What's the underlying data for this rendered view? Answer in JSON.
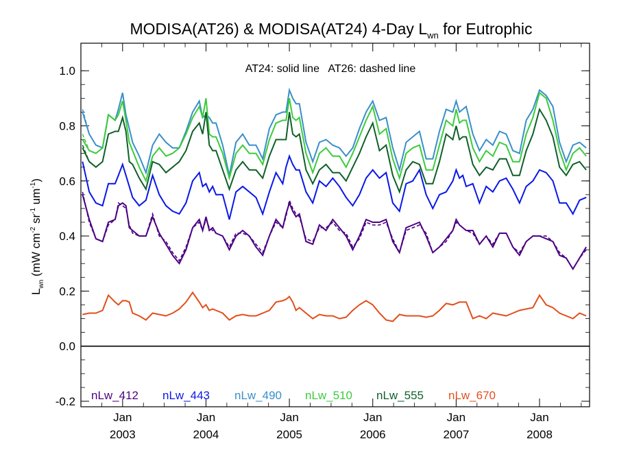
{
  "chart_data": {
    "type": "line",
    "title": {
      "main": "MODISA(AT26) & MODISA(AT24) 4-Day L",
      "sub": "wn",
      "suffix": " for Eutrophic"
    },
    "ylabel": {
      "main": "L",
      "sub": "wn",
      "paren": " (mW cm",
      "exp1": "-2",
      "mid1": " sr",
      "exp2": "-1",
      "mid2": " um",
      "exp3": "-1",
      "end": ")"
    },
    "annotation": "AT24: solid line   AT26: dashed line",
    "ylim": [
      -0.22,
      1.1
    ],
    "yticks": [
      "-0.2",
      "0.0",
      "0.2",
      "0.4",
      "0.6",
      "0.8",
      "1.0"
    ],
    "xlim": [
      2002.5,
      2008.6
    ],
    "xticks": [
      {
        "x": 2003.0,
        "month": "Jan",
        "year": "2003"
      },
      {
        "x": 2004.0,
        "month": "Jan",
        "year": "2004"
      },
      {
        "x": 2005.0,
        "month": "Jan",
        "year": "2005"
      },
      {
        "x": 2006.0,
        "month": "Jan",
        "year": "2006"
      },
      {
        "x": 2007.0,
        "month": "Jan",
        "year": "2007"
      },
      {
        "x": 2008.0,
        "month": "Jan",
        "year": "2008"
      }
    ],
    "zero_line": 0.0,
    "x": [
      2002.52,
      2002.6,
      2002.68,
      2002.76,
      2002.83,
      2002.91,
      2002.95,
      2003.0,
      2003.04,
      2003.08,
      2003.12,
      2003.2,
      2003.28,
      2003.36,
      2003.44,
      2003.52,
      2003.6,
      2003.68,
      2003.76,
      2003.84,
      2003.92,
      2003.96,
      2004.0,
      2004.04,
      2004.08,
      2004.12,
      2004.2,
      2004.28,
      2004.36,
      2004.44,
      2004.52,
      2004.6,
      2004.68,
      2004.76,
      2004.84,
      2004.92,
      2004.96,
      2005.0,
      2005.04,
      2005.08,
      2005.12,
      2005.2,
      2005.28,
      2005.36,
      2005.44,
      2005.52,
      2005.6,
      2005.68,
      2005.76,
      2005.84,
      2005.92,
      2006.0,
      2006.08,
      2006.16,
      2006.24,
      2006.32,
      2006.4,
      2006.48,
      2006.56,
      2006.64,
      2006.72,
      2006.8,
      2006.88,
      2006.96,
      2007.0,
      2007.04,
      2007.08,
      2007.12,
      2007.2,
      2007.28,
      2007.36,
      2007.44,
      2007.52,
      2007.6,
      2007.68,
      2007.76,
      2007.84,
      2007.92,
      2008.0,
      2008.08,
      2008.16,
      2008.24,
      2008.32,
      2008.4,
      2008.48,
      2008.56
    ],
    "series": [
      {
        "name": "nLw_412",
        "color": "#4B0082",
        "solid": [
          0.55,
          0.46,
          0.39,
          0.38,
          0.45,
          0.46,
          0.51,
          0.52,
          0.51,
          0.43,
          0.42,
          0.4,
          0.4,
          0.47,
          0.41,
          0.37,
          0.33,
          0.3,
          0.35,
          0.43,
          0.46,
          0.42,
          0.47,
          0.42,
          0.43,
          0.41,
          0.4,
          0.35,
          0.4,
          0.42,
          0.4,
          0.36,
          0.33,
          0.4,
          0.46,
          0.43,
          0.48,
          0.52,
          0.49,
          0.47,
          0.48,
          0.38,
          0.37,
          0.44,
          0.42,
          0.46,
          0.43,
          0.4,
          0.35,
          0.4,
          0.46,
          0.45,
          0.45,
          0.46,
          0.38,
          0.34,
          0.43,
          0.44,
          0.45,
          0.4,
          0.34,
          0.36,
          0.39,
          0.42,
          0.46,
          0.44,
          0.43,
          0.42,
          0.42,
          0.37,
          0.4,
          0.36,
          0.41,
          0.41,
          0.36,
          0.33,
          0.38,
          0.4,
          0.4,
          0.39,
          0.38,
          0.33,
          0.32,
          0.28,
          0.32,
          0.36
        ],
        "dashed": [
          0.56,
          0.45,
          0.39,
          0.38,
          0.44,
          0.46,
          0.52,
          0.51,
          0.5,
          0.44,
          0.41,
          0.4,
          0.4,
          0.48,
          0.4,
          0.38,
          0.34,
          0.31,
          0.36,
          0.43,
          0.45,
          0.42,
          0.46,
          0.43,
          0.42,
          0.41,
          0.4,
          0.36,
          0.41,
          0.41,
          0.4,
          0.37,
          0.34,
          0.4,
          0.45,
          0.43,
          0.47,
          0.53,
          0.5,
          0.48,
          0.47,
          0.39,
          0.38,
          0.43,
          0.43,
          0.45,
          0.42,
          0.41,
          0.36,
          0.39,
          0.45,
          0.44,
          0.44,
          0.45,
          0.39,
          0.34,
          0.42,
          0.43,
          0.44,
          0.41,
          0.34,
          0.36,
          0.38,
          0.42,
          0.45,
          0.44,
          0.43,
          0.42,
          0.41,
          0.37,
          0.4,
          0.37,
          0.41,
          0.41,
          0.36,
          0.34,
          0.38,
          0.4,
          0.4,
          0.4,
          0.38,
          0.34,
          0.32,
          0.28,
          0.32,
          0.35
        ]
      },
      {
        "name": "nLw_443",
        "color": "#0A19E6",
        "solid": [
          0.67,
          0.56,
          0.52,
          0.51,
          0.59,
          0.59,
          0.62,
          0.66,
          0.62,
          0.58,
          0.54,
          0.51,
          0.53,
          0.62,
          0.55,
          0.51,
          0.49,
          0.48,
          0.52,
          0.6,
          0.63,
          0.58,
          0.59,
          0.56,
          0.58,
          0.55,
          0.55,
          0.46,
          0.56,
          0.58,
          0.56,
          0.54,
          0.48,
          0.56,
          0.63,
          0.59,
          0.65,
          0.69,
          0.66,
          0.64,
          0.64,
          0.56,
          0.52,
          0.6,
          0.58,
          0.61,
          0.58,
          0.54,
          0.51,
          0.55,
          0.61,
          0.64,
          0.61,
          0.63,
          0.52,
          0.49,
          0.59,
          0.6,
          0.64,
          0.55,
          0.5,
          0.55,
          0.56,
          0.6,
          0.64,
          0.61,
          0.62,
          0.58,
          0.59,
          0.52,
          0.58,
          0.56,
          0.6,
          0.61,
          0.57,
          0.52,
          0.58,
          0.6,
          0.64,
          0.63,
          0.6,
          0.52,
          0.52,
          0.48,
          0.53,
          0.54
        ],
        "dashed": [
          0.67,
          0.56,
          0.52,
          0.51,
          0.59,
          0.59,
          0.62,
          0.66,
          0.62,
          0.58,
          0.54,
          0.51,
          0.53,
          0.62,
          0.55,
          0.51,
          0.49,
          0.48,
          0.52,
          0.6,
          0.63,
          0.58,
          0.59,
          0.56,
          0.58,
          0.55,
          0.55,
          0.46,
          0.56,
          0.58,
          0.56,
          0.54,
          0.48,
          0.56,
          0.63,
          0.59,
          0.65,
          0.69,
          0.66,
          0.64,
          0.64,
          0.56,
          0.52,
          0.6,
          0.58,
          0.61,
          0.58,
          0.54,
          0.51,
          0.55,
          0.61,
          0.64,
          0.61,
          0.63,
          0.52,
          0.49,
          0.59,
          0.6,
          0.64,
          0.55,
          0.5,
          0.55,
          0.56,
          0.6,
          0.64,
          0.61,
          0.62,
          0.58,
          0.59,
          0.52,
          0.58,
          0.56,
          0.6,
          0.61,
          0.57,
          0.52,
          0.58,
          0.6,
          0.64,
          0.63,
          0.6,
          0.52,
          0.52,
          0.48,
          0.53,
          0.54
        ]
      },
      {
        "name": "nLw_490",
        "color": "#3A8FCB",
        "solid": [
          0.85,
          0.77,
          0.73,
          0.72,
          0.84,
          0.82,
          0.86,
          0.92,
          0.84,
          0.79,
          0.74,
          0.69,
          0.63,
          0.73,
          0.77,
          0.74,
          0.72,
          0.72,
          0.78,
          0.85,
          0.89,
          0.83,
          0.84,
          0.83,
          0.81,
          0.81,
          0.73,
          0.62,
          0.74,
          0.77,
          0.73,
          0.73,
          0.68,
          0.79,
          0.84,
          0.85,
          0.85,
          0.93,
          0.9,
          0.88,
          0.88,
          0.74,
          0.67,
          0.74,
          0.75,
          0.73,
          0.72,
          0.69,
          0.72,
          0.79,
          0.85,
          0.89,
          0.82,
          0.83,
          0.72,
          0.64,
          0.74,
          0.76,
          0.78,
          0.68,
          0.68,
          0.78,
          0.86,
          0.85,
          0.89,
          0.85,
          0.86,
          0.87,
          0.77,
          0.71,
          0.75,
          0.73,
          0.78,
          0.77,
          0.71,
          0.7,
          0.82,
          0.86,
          0.93,
          0.91,
          0.87,
          0.74,
          0.67,
          0.73,
          0.74,
          0.72
        ],
        "dashed": [
          0.86,
          0.77,
          0.73,
          0.72,
          0.84,
          0.82,
          0.86,
          0.92,
          0.84,
          0.79,
          0.74,
          0.69,
          0.63,
          0.73,
          0.77,
          0.74,
          0.72,
          0.72,
          0.78,
          0.85,
          0.89,
          0.83,
          0.84,
          0.83,
          0.81,
          0.81,
          0.73,
          0.62,
          0.74,
          0.77,
          0.73,
          0.73,
          0.68,
          0.79,
          0.84,
          0.85,
          0.85,
          0.93,
          0.9,
          0.88,
          0.88,
          0.74,
          0.67,
          0.74,
          0.75,
          0.73,
          0.72,
          0.69,
          0.72,
          0.79,
          0.85,
          0.89,
          0.82,
          0.83,
          0.72,
          0.64,
          0.74,
          0.76,
          0.78,
          0.68,
          0.68,
          0.78,
          0.86,
          0.85,
          0.89,
          0.85,
          0.86,
          0.87,
          0.77,
          0.71,
          0.75,
          0.73,
          0.78,
          0.77,
          0.71,
          0.7,
          0.82,
          0.86,
          0.93,
          0.91,
          0.87,
          0.74,
          0.67,
          0.73,
          0.74,
          0.72
        ]
      },
      {
        "name": "nLw_510",
        "color": "#3CCB3C",
        "solid": [
          0.75,
          0.71,
          0.7,
          0.72,
          0.84,
          0.82,
          0.84,
          0.89,
          0.82,
          0.74,
          0.71,
          0.65,
          0.6,
          0.69,
          0.72,
          0.69,
          0.7,
          0.72,
          0.77,
          0.83,
          0.87,
          0.83,
          0.9,
          0.77,
          0.76,
          0.76,
          0.7,
          0.61,
          0.7,
          0.73,
          0.7,
          0.7,
          0.66,
          0.75,
          0.81,
          0.82,
          0.82,
          0.9,
          0.83,
          0.82,
          0.83,
          0.7,
          0.63,
          0.7,
          0.72,
          0.69,
          0.69,
          0.65,
          0.7,
          0.76,
          0.82,
          0.87,
          0.77,
          0.79,
          0.68,
          0.61,
          0.7,
          0.72,
          0.73,
          0.64,
          0.64,
          0.73,
          0.82,
          0.8,
          0.86,
          0.81,
          0.82,
          0.82,
          0.72,
          0.67,
          0.71,
          0.69,
          0.74,
          0.73,
          0.67,
          0.67,
          0.77,
          0.83,
          0.92,
          0.9,
          0.82,
          0.71,
          0.64,
          0.7,
          0.72,
          0.69
        ],
        "dashed": [
          0.77,
          0.71,
          0.7,
          0.72,
          0.84,
          0.82,
          0.84,
          0.89,
          0.82,
          0.74,
          0.71,
          0.65,
          0.6,
          0.69,
          0.72,
          0.69,
          0.7,
          0.72,
          0.77,
          0.83,
          0.87,
          0.83,
          0.9,
          0.77,
          0.76,
          0.76,
          0.7,
          0.61,
          0.7,
          0.73,
          0.7,
          0.7,
          0.66,
          0.75,
          0.81,
          0.82,
          0.82,
          0.9,
          0.83,
          0.82,
          0.83,
          0.7,
          0.63,
          0.7,
          0.72,
          0.69,
          0.69,
          0.65,
          0.7,
          0.76,
          0.82,
          0.87,
          0.77,
          0.79,
          0.68,
          0.61,
          0.7,
          0.72,
          0.73,
          0.64,
          0.64,
          0.73,
          0.82,
          0.8,
          0.86,
          0.81,
          0.82,
          0.82,
          0.72,
          0.67,
          0.71,
          0.69,
          0.74,
          0.73,
          0.67,
          0.67,
          0.77,
          0.83,
          0.92,
          0.9,
          0.82,
          0.71,
          0.64,
          0.7,
          0.72,
          0.69
        ]
      },
      {
        "name": "nLw_555",
        "color": "#10602A",
        "solid": [
          0.72,
          0.67,
          0.65,
          0.67,
          0.77,
          0.78,
          0.78,
          0.83,
          0.78,
          0.67,
          0.66,
          0.61,
          0.57,
          0.67,
          0.66,
          0.63,
          0.65,
          0.67,
          0.71,
          0.78,
          0.81,
          0.77,
          0.85,
          0.73,
          0.71,
          0.71,
          0.64,
          0.57,
          0.64,
          0.67,
          0.64,
          0.64,
          0.61,
          0.69,
          0.75,
          0.75,
          0.75,
          0.85,
          0.77,
          0.76,
          0.77,
          0.64,
          0.59,
          0.64,
          0.66,
          0.63,
          0.63,
          0.6,
          0.65,
          0.7,
          0.76,
          0.81,
          0.71,
          0.73,
          0.62,
          0.56,
          0.64,
          0.67,
          0.66,
          0.59,
          0.59,
          0.67,
          0.77,
          0.75,
          0.8,
          0.75,
          0.76,
          0.76,
          0.66,
          0.62,
          0.65,
          0.64,
          0.68,
          0.68,
          0.62,
          0.62,
          0.71,
          0.77,
          0.86,
          0.82,
          0.76,
          0.65,
          0.62,
          0.66,
          0.67,
          0.64
        ],
        "dashed": [
          0.73,
          0.67,
          0.65,
          0.67,
          0.77,
          0.78,
          0.78,
          0.83,
          0.78,
          0.67,
          0.66,
          0.61,
          0.57,
          0.67,
          0.66,
          0.63,
          0.65,
          0.67,
          0.71,
          0.78,
          0.81,
          0.77,
          0.85,
          0.73,
          0.71,
          0.71,
          0.64,
          0.57,
          0.64,
          0.67,
          0.64,
          0.64,
          0.61,
          0.69,
          0.75,
          0.75,
          0.75,
          0.85,
          0.77,
          0.76,
          0.77,
          0.64,
          0.59,
          0.64,
          0.66,
          0.63,
          0.63,
          0.6,
          0.65,
          0.7,
          0.76,
          0.81,
          0.71,
          0.73,
          0.62,
          0.56,
          0.64,
          0.67,
          0.66,
          0.59,
          0.59,
          0.67,
          0.77,
          0.75,
          0.8,
          0.75,
          0.76,
          0.76,
          0.66,
          0.62,
          0.65,
          0.64,
          0.68,
          0.68,
          0.62,
          0.62,
          0.71,
          0.77,
          0.86,
          0.82,
          0.76,
          0.65,
          0.62,
          0.66,
          0.67,
          0.64
        ]
      },
      {
        "name": "nLw_670",
        "color": "#E0501C",
        "solid": [
          0.115,
          0.12,
          0.12,
          0.13,
          0.185,
          0.16,
          0.15,
          0.165,
          0.165,
          0.16,
          0.12,
          0.11,
          0.095,
          0.12,
          0.115,
          0.11,
          0.12,
          0.135,
          0.16,
          0.195,
          0.16,
          0.14,
          0.15,
          0.13,
          0.135,
          0.13,
          0.12,
          0.095,
          0.11,
          0.115,
          0.11,
          0.11,
          0.12,
          0.13,
          0.16,
          0.165,
          0.17,
          0.18,
          0.16,
          0.13,
          0.14,
          0.12,
          0.1,
          0.115,
          0.11,
          0.11,
          0.1,
          0.105,
          0.13,
          0.15,
          0.165,
          0.15,
          0.12,
          0.095,
          0.09,
          0.115,
          0.11,
          0.11,
          0.11,
          0.105,
          0.11,
          0.13,
          0.155,
          0.15,
          0.155,
          0.16,
          0.16,
          0.16,
          0.1,
          0.11,
          0.1,
          0.12,
          0.115,
          0.11,
          0.12,
          0.13,
          0.135,
          0.14,
          0.185,
          0.15,
          0.14,
          0.12,
          0.11,
          0.1,
          0.12,
          0.11
        ],
        "dashed": [
          0.115,
          0.12,
          0.12,
          0.13,
          0.185,
          0.16,
          0.15,
          0.165,
          0.165,
          0.16,
          0.12,
          0.11,
          0.095,
          0.12,
          0.115,
          0.11,
          0.12,
          0.135,
          0.16,
          0.195,
          0.16,
          0.14,
          0.15,
          0.13,
          0.135,
          0.13,
          0.12,
          0.095,
          0.11,
          0.115,
          0.11,
          0.11,
          0.12,
          0.13,
          0.16,
          0.165,
          0.17,
          0.18,
          0.16,
          0.13,
          0.14,
          0.12,
          0.1,
          0.115,
          0.11,
          0.11,
          0.1,
          0.105,
          0.13,
          0.15,
          0.165,
          0.15,
          0.12,
          0.095,
          0.09,
          0.115,
          0.11,
          0.11,
          0.11,
          0.105,
          0.11,
          0.13,
          0.155,
          0.15,
          0.155,
          0.16,
          0.16,
          0.16,
          0.1,
          0.11,
          0.1,
          0.12,
          0.115,
          0.11,
          0.12,
          0.13,
          0.135,
          0.14,
          0.185,
          0.15,
          0.14,
          0.12,
          0.11,
          0.1,
          0.12,
          0.11
        ]
      }
    ]
  }
}
